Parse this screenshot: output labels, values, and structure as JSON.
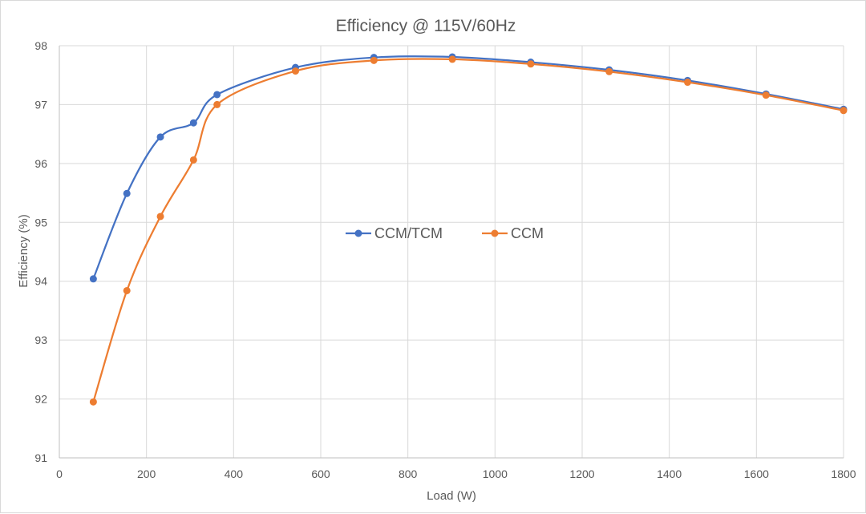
{
  "chart_data": {
    "type": "line",
    "title": "Efficiency @ 115V/60Hz",
    "xlabel": "Load (W)",
    "ylabel": "Efficiency (%)",
    "xlim": [
      0,
      1800
    ],
    "ylim": [
      91,
      98
    ],
    "xticks": [
      0,
      200,
      400,
      600,
      800,
      1000,
      1200,
      1400,
      1600,
      1800
    ],
    "yticks": [
      91,
      92,
      93,
      94,
      95,
      96,
      97,
      98
    ],
    "grid": true,
    "legend_position": "center",
    "series": [
      {
        "name": "CCM/TCM",
        "color": "#4472C4",
        "x": [
          78,
          155,
          232,
          308,
          362,
          542,
          722,
          902,
          1082,
          1262,
          1442,
          1622,
          1800
        ],
        "y": [
          94.04,
          95.49,
          96.45,
          96.69,
          97.17,
          97.63,
          97.8,
          97.81,
          97.72,
          97.59,
          97.41,
          97.18,
          96.92
        ]
      },
      {
        "name": "CCM",
        "color": "#ED7D31",
        "x": [
          78,
          155,
          232,
          308,
          362,
          542,
          722,
          902,
          1082,
          1262,
          1442,
          1622,
          1800
        ],
        "y": [
          91.95,
          93.84,
          95.1,
          96.06,
          97.0,
          97.57,
          97.75,
          97.77,
          97.69,
          97.56,
          97.38,
          97.16,
          96.9
        ]
      }
    ]
  }
}
